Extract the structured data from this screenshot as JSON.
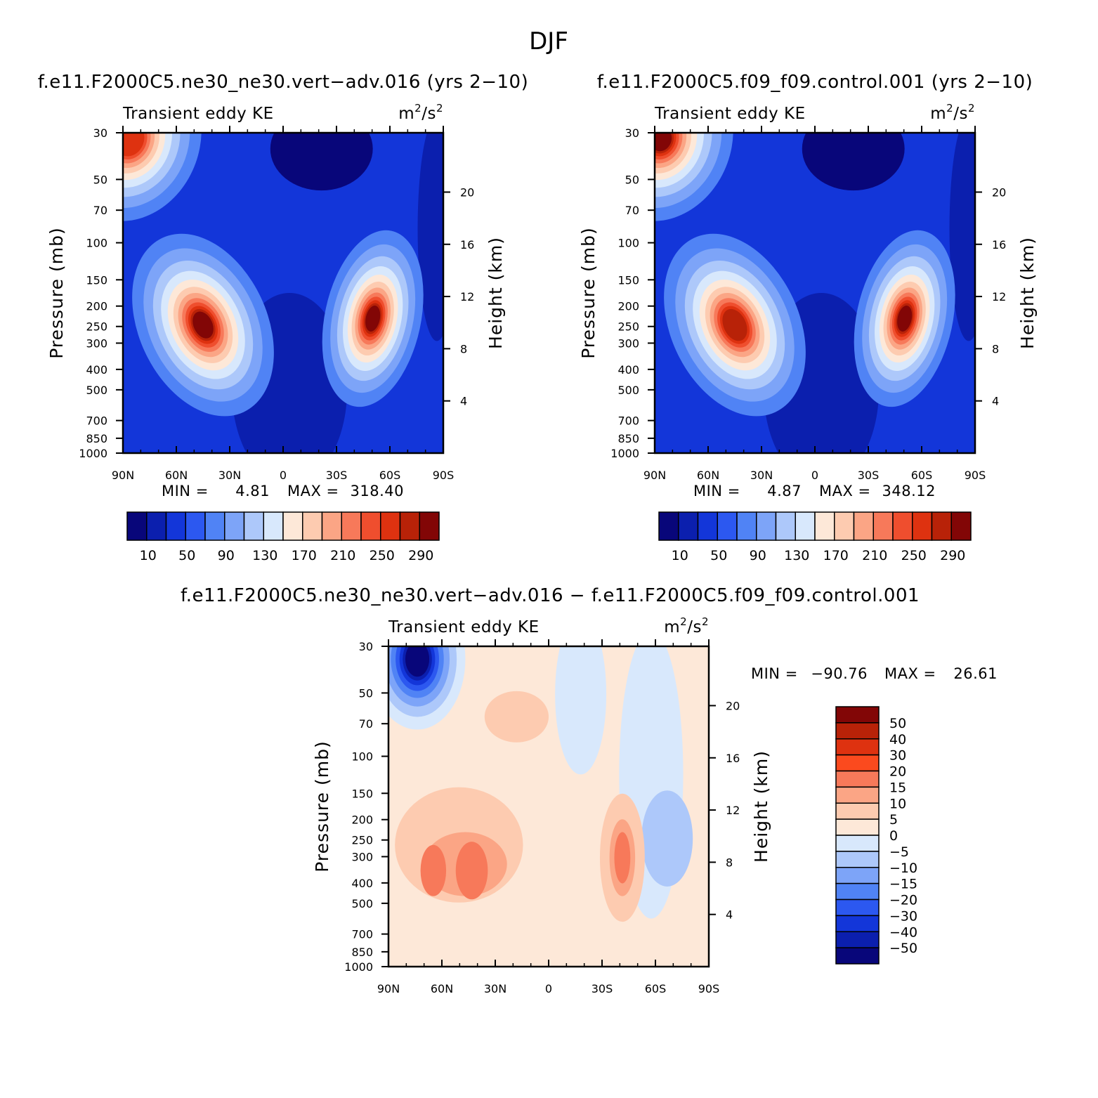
{
  "chart_data": {
    "figure_title": "DJF",
    "panels": [
      {
        "type": "contour",
        "title": "f.e11.F2000C5.ne30_ne30.vert−adv.016 (yrs 2−10)",
        "left_label": "Transient eddy KE",
        "units_base": "m",
        "units_sup": "2",
        "units_mid": "/s",
        "units_sup2": "2",
        "xlabel": "",
        "ylabel": "Pressure (mb)",
        "ylabel_right": "Height (km)",
        "x_ticks": [
          "90N",
          "60N",
          "30N",
          "0",
          "30S",
          "60S",
          "90S"
        ],
        "y_ticks": [
          "30",
          "50",
          "70",
          "100",
          "150",
          "200",
          "250",
          "300",
          "400",
          "500",
          "700",
          "850",
          "1000"
        ],
        "y_ticks_right": [
          "20",
          "16",
          "12",
          "8",
          "4"
        ],
        "min_label": "MIN =",
        "min_value": "4.81",
        "max_label": "MAX =",
        "max_value": "318.40",
        "min": 4.81,
        "max": 318.4,
        "colorbar": {
          "colors": [
            "#08067a",
            "#0b1fae",
            "#1336d9",
            "#2c58f0",
            "#5083f5",
            "#7da4f8",
            "#adc8fa",
            "#d8e8fc",
            "#fde8d8",
            "#fdcbb0",
            "#fba585",
            "#f7795a",
            "#ef4e2e",
            "#de3210",
            "#b82208",
            "#820606"
          ],
          "labels": [
            "10",
            "50",
            "90",
            "130",
            "170",
            "210",
            "250",
            "290"
          ]
        }
      },
      {
        "type": "contour",
        "title": "f.e11.F2000C5.f09_f09.control.001 (yrs 2−10)",
        "left_label": "Transient eddy KE",
        "units_base": "m",
        "units_sup": "2",
        "units_mid": "/s",
        "units_sup2": "2",
        "xlabel": "",
        "ylabel": "Pressure (mb)",
        "ylabel_right": "Height (km)",
        "x_ticks": [
          "90N",
          "60N",
          "30N",
          "0",
          "30S",
          "60S",
          "90S"
        ],
        "y_ticks": [
          "30",
          "50",
          "70",
          "100",
          "150",
          "200",
          "250",
          "300",
          "400",
          "500",
          "700",
          "850",
          "1000"
        ],
        "y_ticks_right": [
          "20",
          "16",
          "12",
          "8",
          "4"
        ],
        "min_label": "MIN =",
        "min_value": "4.87",
        "max_label": "MAX =",
        "max_value": "348.12",
        "min": 4.87,
        "max": 348.12,
        "colorbar": {
          "colors": [
            "#08067a",
            "#0b1fae",
            "#1336d9",
            "#2c58f0",
            "#5083f5",
            "#7da4f8",
            "#adc8fa",
            "#d8e8fc",
            "#fde8d8",
            "#fdcbb0",
            "#fba585",
            "#f7795a",
            "#ef4e2e",
            "#de3210",
            "#b82208",
            "#820606"
          ],
          "labels": [
            "10",
            "50",
            "90",
            "130",
            "170",
            "210",
            "250",
            "290"
          ]
        }
      },
      {
        "type": "contour",
        "title": "f.e11.F2000C5.ne30_ne30.vert−adv.016 − f.e11.F2000C5.f09_f09.control.001",
        "left_label": "Transient eddy KE",
        "units_base": "m",
        "units_sup": "2",
        "units_mid": "/s",
        "units_sup2": "2",
        "xlabel": "",
        "ylabel": "Pressure (mb)",
        "ylabel_right": "Height (km)",
        "x_ticks": [
          "90N",
          "60N",
          "30N",
          "0",
          "30S",
          "60S",
          "90S"
        ],
        "y_ticks": [
          "30",
          "50",
          "70",
          "100",
          "150",
          "200",
          "250",
          "300",
          "400",
          "500",
          "700",
          "850",
          "1000"
        ],
        "y_ticks_right": [
          "20",
          "16",
          "12",
          "8",
          "4"
        ],
        "min_label": "MIN =",
        "min_value": "−90.76",
        "max_label": "MAX =",
        "max_value": "26.61",
        "min": -90.76,
        "max": 26.61,
        "colorbar": {
          "colors": [
            "#820606",
            "#b82208",
            "#de3210",
            "#fb4a1e",
            "#f7795a",
            "#fba585",
            "#fdcbb0",
            "#fde8d8",
            "#d8e8fc",
            "#adc8fa",
            "#7da4f8",
            "#5083f5",
            "#2c58f0",
            "#1336d9",
            "#0b1fae",
            "#08067a"
          ],
          "labels": [
            "50",
            "40",
            "30",
            "20",
            "15",
            "10",
            "5",
            "0",
            "−5",
            "−10",
            "−15",
            "−20",
            "−30",
            "−40",
            "−50"
          ]
        }
      }
    ]
  }
}
